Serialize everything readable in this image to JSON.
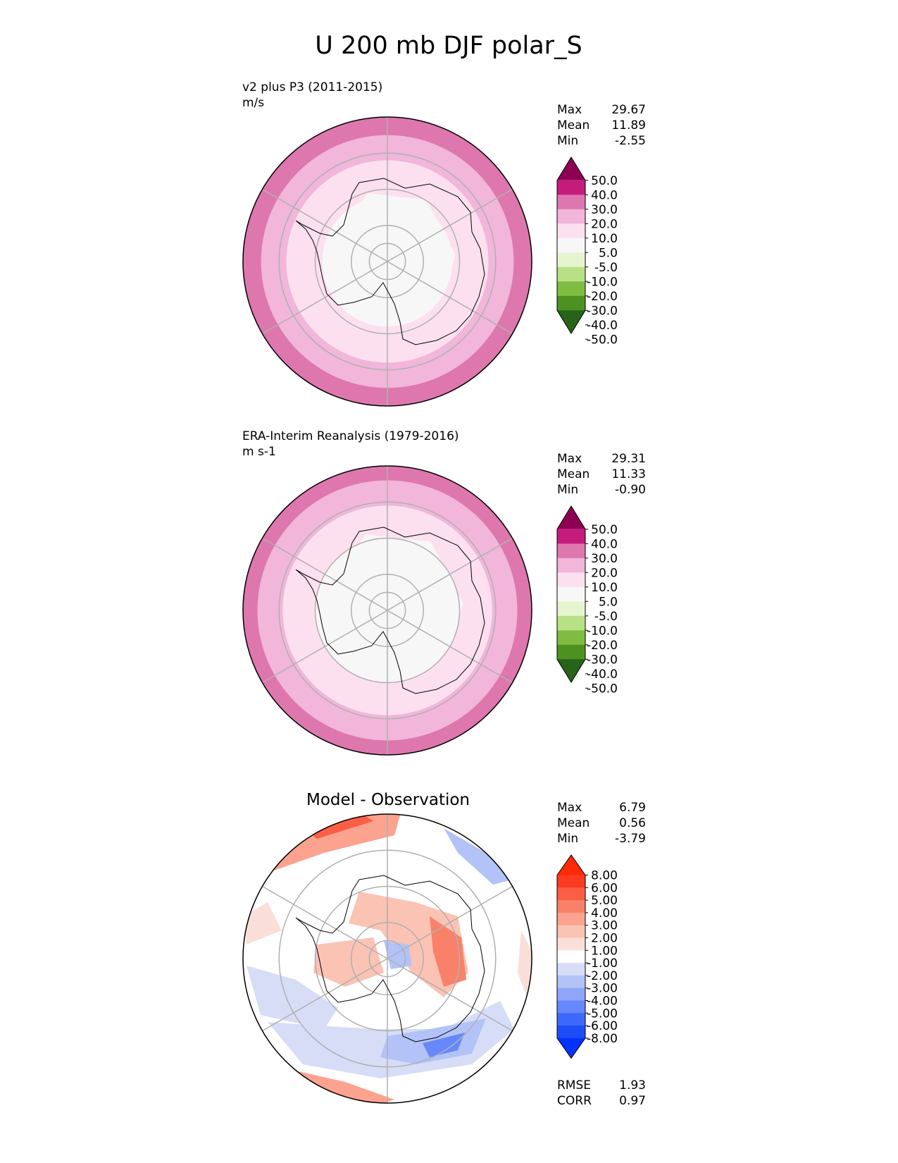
{
  "title": "U 200 mb DJF polar_S",
  "colors": {
    "seq": [
      "#276419",
      "#4d9221",
      "#7fbc41",
      "#b8e186",
      "#e6f5d0",
      "#f7f7f7",
      "#fde0ef",
      "#f1b6da",
      "#de77ae",
      "#c51b7d",
      "#8e0152"
    ],
    "seq_levels": [
      "-50.0",
      "-40.0",
      "-30.0",
      "-20.0",
      "-10.0",
      "-5.0",
      "5.0",
      "10.0",
      "20.0",
      "30.0",
      "40.0",
      "50.0"
    ],
    "diff": [
      "#0432ff",
      "#1c4df7",
      "#3e68fb",
      "#6688fb",
      "#8ea5fa",
      "#b3c3f8",
      "#d7ddf7",
      "#ffffff",
      "#fadfd8",
      "#fbc3b4",
      "#fba38f",
      "#fa8169",
      "#fa5f45",
      "#fa3b1f",
      "#fd2907"
    ],
    "diff_levels": [
      "-8.00",
      "-6.00",
      "-5.00",
      "-4.00",
      "-3.00",
      "-2.00",
      "-1.00",
      "1.00",
      "2.00",
      "3.00",
      "4.00",
      "5.00",
      "6.00",
      "8.00"
    ],
    "grid": "#b0b0b0",
    "coast": "#000000"
  },
  "chart_data": [
    {
      "type": "heatmap",
      "panel": "test",
      "title": "v2 plus P3 (2011-2015)",
      "units": "m/s",
      "stats": {
        "max_label": "Max",
        "max": "29.67",
        "mean_label": "Mean",
        "mean": "11.89",
        "min_label": "Min",
        "min": "-2.55"
      },
      "projection": "south polar stereographic",
      "zonal_profile": [
        {
          "lat_from": -90,
          "lat_to": -72,
          "range": "-5.0 to 5.0"
        },
        {
          "lat_from": -72,
          "lat_to": -62,
          "range": "5.0 to 10.0"
        },
        {
          "lat_from": -62,
          "lat_to": -55,
          "range": "10.0 to 20.0"
        },
        {
          "lat_from": -55,
          "lat_to": -50,
          "range": "20.0 to 30.0"
        }
      ]
    },
    {
      "type": "heatmap",
      "panel": "reference",
      "title": "ERA-Interim Reanalysis (1979-2016)",
      "units": "m s-1",
      "stats": {
        "max_label": "Max",
        "max": "29.31",
        "mean_label": "Mean",
        "mean": "11.33",
        "min_label": "Min",
        "min": "-0.90"
      },
      "projection": "south polar stereographic",
      "zonal_profile": [
        {
          "lat_from": -90,
          "lat_to": -70,
          "range": "-5.0 to 5.0"
        },
        {
          "lat_from": -70,
          "lat_to": -61,
          "range": "5.0 to 10.0"
        },
        {
          "lat_from": -61,
          "lat_to": -54,
          "range": "10.0 to 20.0"
        },
        {
          "lat_from": -54,
          "lat_to": -50,
          "range": "20.0 to 30.0"
        }
      ]
    },
    {
      "type": "heatmap",
      "panel": "diff",
      "title": "Model - Observation",
      "stats": {
        "max_label": "Max",
        "max": "6.79",
        "mean_label": "Mean",
        "mean": "0.56",
        "min_label": "Min",
        "min": "-3.79"
      },
      "metrics": {
        "rmse_label": "RMSE",
        "rmse": "1.93",
        "corr_label": "CORR",
        "corr": "0.97"
      },
      "projection": "south polar stereographic"
    }
  ]
}
